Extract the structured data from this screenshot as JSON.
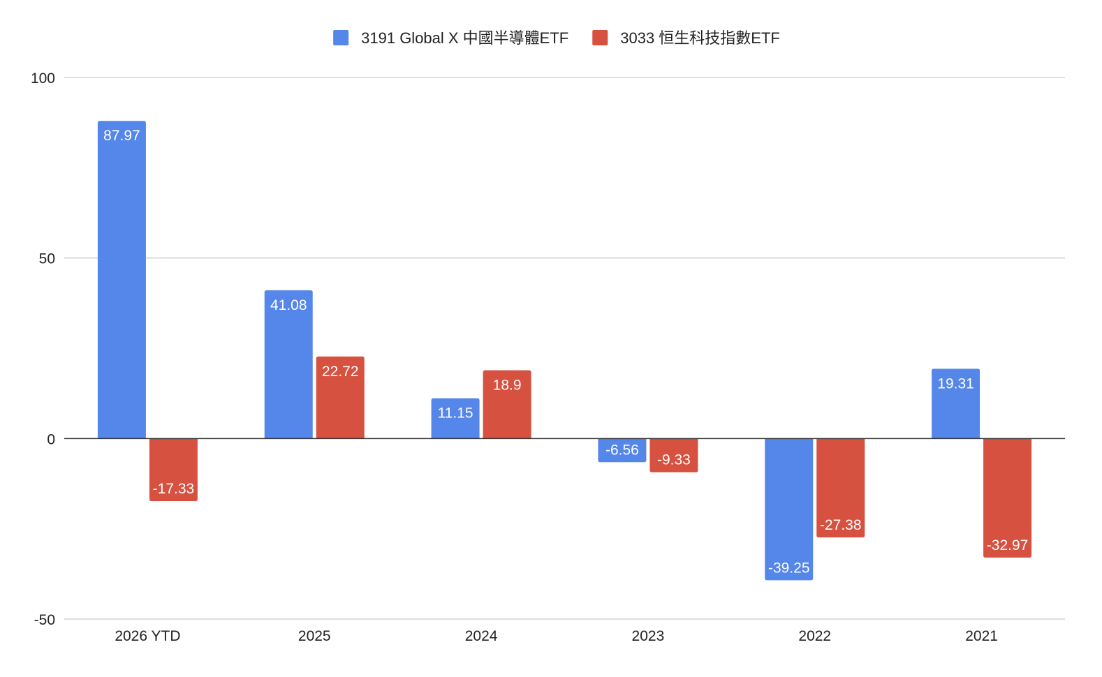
{
  "chart_data": {
    "type": "bar",
    "title": "",
    "xlabel": "",
    "ylabel": "",
    "categories": [
      "2026 YTD",
      "2025",
      "2024",
      "2023",
      "2022",
      "2021"
    ],
    "series": [
      {
        "name": "3191 Global X 中國半導體ETF",
        "color": "#5586ea",
        "values": [
          87.97,
          41.08,
          11.15,
          -6.56,
          -39.25,
          19.31
        ]
      },
      {
        "name": "3033 恒生科技指數ETF",
        "color": "#d75140",
        "values": [
          -17.33,
          22.72,
          18.9,
          -9.33,
          -27.38,
          -32.97
        ]
      }
    ],
    "ylim": [
      -50,
      100
    ],
    "yticks": [
      100,
      50,
      0,
      -50
    ],
    "grid": true,
    "legend_position": "top-center",
    "data_labels": true
  }
}
